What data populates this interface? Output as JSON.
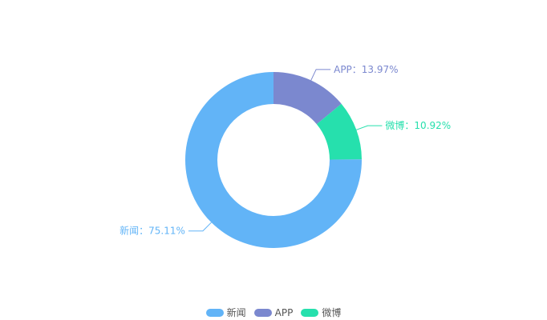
{
  "chart_data": {
    "type": "pie",
    "donut": true,
    "title": "",
    "slices": [
      {
        "name": "新闻",
        "value": 75.11,
        "label": "新闻：75.11%",
        "color": "#62b4f7"
      },
      {
        "name": "APP",
        "value": 13.97,
        "label": "APP：13.97%",
        "color": "#7b88cf"
      },
      {
        "name": "微博",
        "value": 10.92,
        "label": "微博：10.92%",
        "color": "#26e0ad"
      }
    ],
    "legend_position": "bottom-center"
  },
  "legend": {
    "items": [
      {
        "label": "新闻",
        "color": "#62b4f7"
      },
      {
        "label": "APP",
        "color": "#7b88cf"
      },
      {
        "label": "微博",
        "color": "#26e0ad"
      }
    ]
  }
}
